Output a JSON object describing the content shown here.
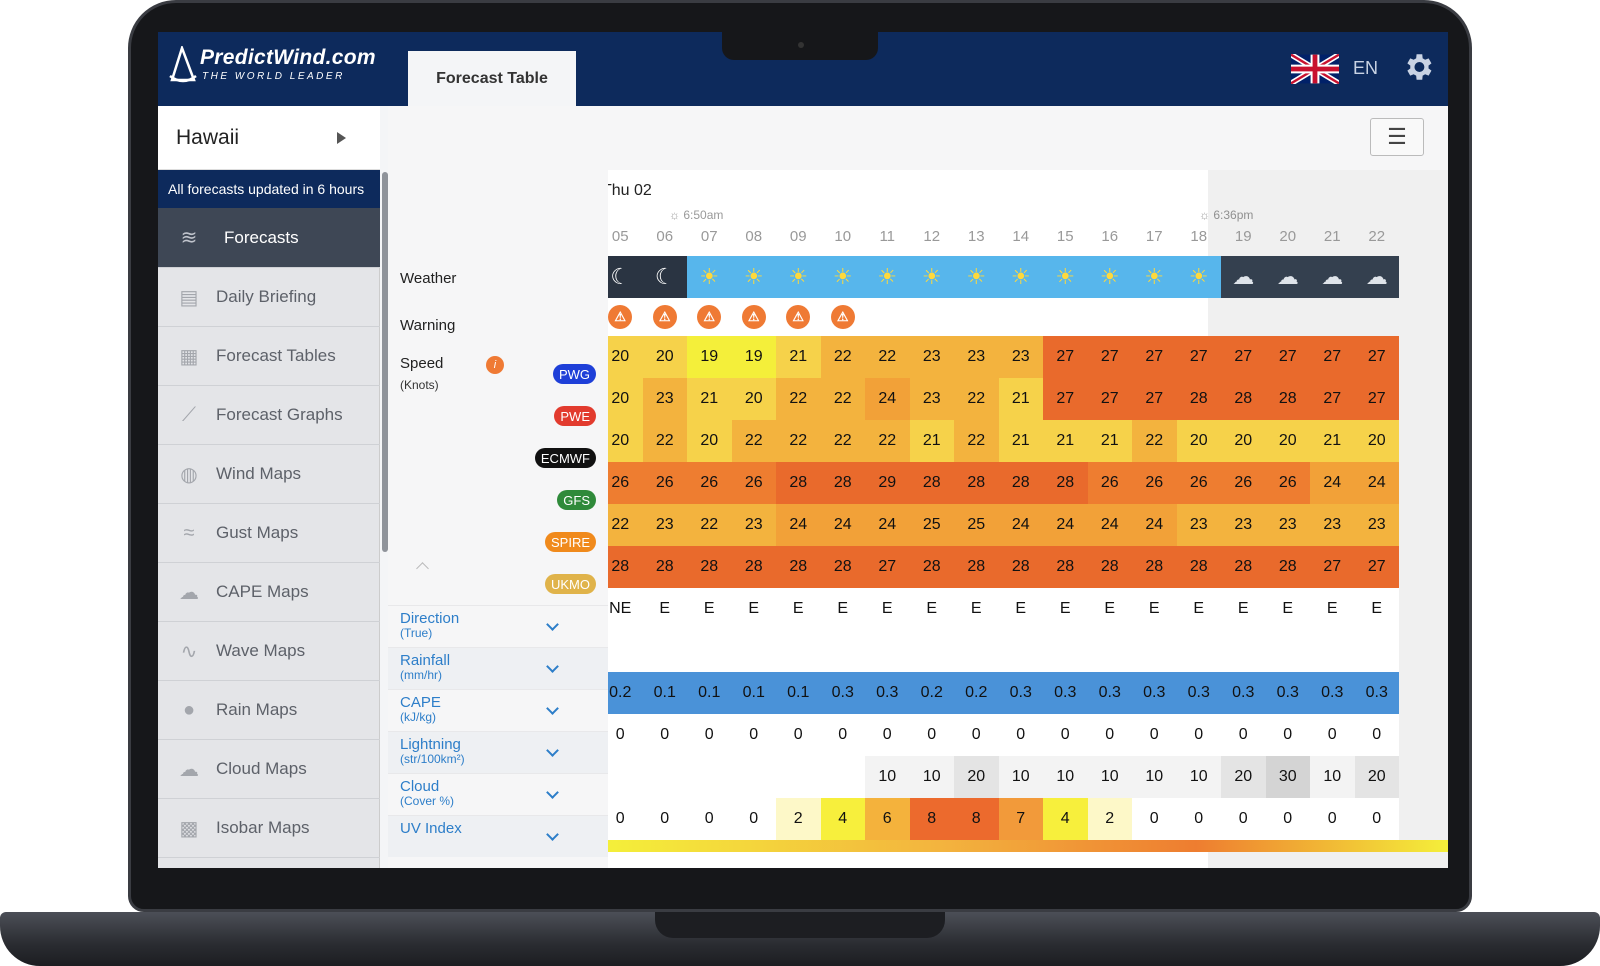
{
  "app": {
    "logo_main": "PredictWind.com",
    "logo_sub": "THE WORLD LEADER",
    "tab_label": "Forecast Table",
    "language": "EN"
  },
  "sidebar": {
    "location": "Hawaii",
    "updated": "All forecasts updated in 6 hours",
    "items": [
      {
        "label": "Forecasts",
        "icon": "wind-icon",
        "active": true
      },
      {
        "label": "Daily Briefing",
        "icon": "document-icon"
      },
      {
        "label": "Forecast Tables",
        "icon": "table-icon"
      },
      {
        "label": "Forecast Graphs",
        "icon": "graph-icon"
      },
      {
        "label": "Wind Maps",
        "icon": "globe-icon"
      },
      {
        "label": "Gust Maps",
        "icon": "gust-icon"
      },
      {
        "label": "CAPE Maps",
        "icon": "storm-icon"
      },
      {
        "label": "Wave Maps",
        "icon": "wave-icon"
      },
      {
        "label": "Rain Maps",
        "icon": "raindrop-icon"
      },
      {
        "label": "Cloud Maps",
        "icon": "cloud-icon"
      },
      {
        "label": "Isobar Maps",
        "icon": "isobar-icon"
      }
    ]
  },
  "table": {
    "day": "Thu 02",
    "sunrise": "6:50am",
    "sunset": "6:36pm",
    "hours": [
      "05",
      "06",
      "07",
      "08",
      "09",
      "10",
      "11",
      "12",
      "13",
      "14",
      "15",
      "16",
      "17",
      "18",
      "19",
      "20",
      "21",
      "22"
    ],
    "labels": {
      "weather": "Weather",
      "warning": "Warning",
      "speed": "Speed",
      "speed_unit": "(Knots)"
    },
    "weather": [
      "moon",
      "moon",
      "sun",
      "sun",
      "sun",
      "sun",
      "sun",
      "sun",
      "sun",
      "sun",
      "sun",
      "sun",
      "sun",
      "sun",
      "cloud-moon",
      "cloud-moon",
      "cloud-moon",
      "cloud-moon"
    ],
    "warnings": [
      true,
      true,
      true,
      true,
      true,
      true,
      false,
      false,
      false,
      false,
      false,
      false,
      false,
      false,
      false,
      false,
      false,
      false
    ],
    "models": [
      {
        "name": "PWG",
        "color": "#1e3fd8",
        "values": [
          20,
          20,
          19,
          19,
          21,
          22,
          22,
          23,
          23,
          23,
          27,
          27,
          27,
          27,
          27,
          27,
          27,
          27
        ]
      },
      {
        "name": "PWE",
        "color": "#e23b2e",
        "values": [
          20,
          23,
          21,
          20,
          22,
          22,
          24,
          23,
          22,
          21,
          27,
          27,
          27,
          28,
          28,
          28,
          27,
          27
        ]
      },
      {
        "name": "ECMWF",
        "color": "#111111",
        "values": [
          20,
          22,
          20,
          22,
          22,
          22,
          22,
          21,
          22,
          21,
          21,
          21,
          22,
          20,
          20,
          20,
          21,
          20
        ]
      },
      {
        "name": "GFS",
        "color": "#2f8a3a",
        "values": [
          26,
          26,
          26,
          26,
          28,
          28,
          29,
          28,
          28,
          28,
          28,
          26,
          26,
          26,
          26,
          26,
          24,
          24
        ]
      },
      {
        "name": "SPIRE",
        "color": "#f08a1c",
        "values": [
          22,
          23,
          22,
          23,
          24,
          24,
          24,
          25,
          25,
          24,
          24,
          24,
          24,
          23,
          23,
          23,
          23,
          23
        ]
      },
      {
        "name": "UKMO",
        "color": "#e0b34a",
        "values": [
          28,
          28,
          28,
          28,
          28,
          28,
          27,
          28,
          28,
          28,
          28,
          28,
          28,
          28,
          28,
          28,
          27,
          27
        ]
      }
    ],
    "params": [
      {
        "name": "Direction",
        "unit": "(True)",
        "values": [
          "NE",
          "E",
          "E",
          "E",
          "E",
          "E",
          "E",
          "E",
          "E",
          "E",
          "E",
          "E",
          "E",
          "E",
          "E",
          "E",
          "E",
          "E"
        ]
      },
      {
        "name": "Rainfall",
        "unit": "(mm/hr)",
        "values": [
          "",
          "",
          "",
          "",
          "",
          "",
          "",
          "",
          "",
          "",
          "",
          "",
          "",
          "",
          "",
          "",
          "",
          ""
        ]
      },
      {
        "name": "CAPE",
        "unit": "(kJ/kg)",
        "values": [
          "0.2",
          "0.1",
          "0.1",
          "0.1",
          "0.1",
          "0.3",
          "0.3",
          "0.2",
          "0.2",
          "0.3",
          "0.3",
          "0.3",
          "0.3",
          "0.3",
          "0.3",
          "0.3",
          "0.3",
          "0.3"
        ]
      },
      {
        "name": "Lightning",
        "unit": "(str/100km²)",
        "values": [
          "0",
          "0",
          "0",
          "0",
          "0",
          "0",
          "0",
          "0",
          "0",
          "0",
          "0",
          "0",
          "0",
          "0",
          "0",
          "0",
          "0",
          "0"
        ]
      },
      {
        "name": "Cloud",
        "unit": "(Cover %)",
        "values": [
          "",
          "",
          "",
          "",
          "",
          "",
          "10",
          "10",
          "20",
          "10",
          "10",
          "10",
          "10",
          "10",
          "20",
          "30",
          "10",
          "20"
        ]
      },
      {
        "name": "UV Index",
        "unit": "",
        "values": [
          "0",
          "0",
          "0",
          "0",
          "2",
          "4",
          "6",
          "8",
          "8",
          "7",
          "4",
          "2",
          "0",
          "0",
          "0",
          "0",
          "0",
          "0"
        ]
      }
    ]
  }
}
